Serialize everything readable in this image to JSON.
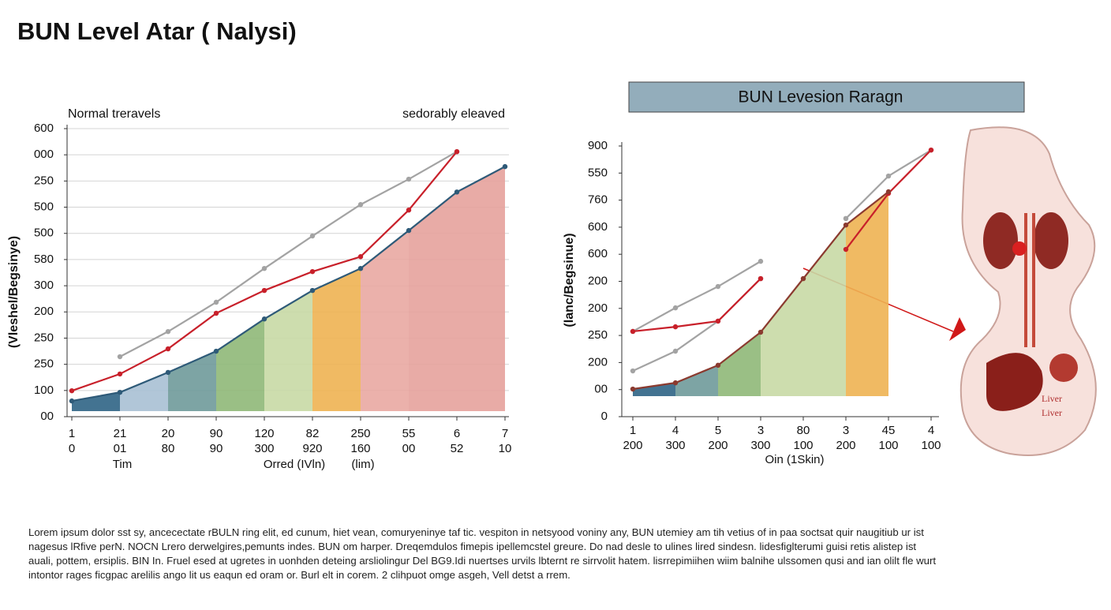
{
  "header": {
    "title": "BUN Level Atar (  Nalysi)"
  },
  "chart_data": [
    {
      "type": "line",
      "annotations": [
        "Normal treravels",
        "sedorably eleaved"
      ],
      "ylabel": "(Vleshel/Begsinye)",
      "xlabels": [
        "Tim",
        "Orred (IVln)",
        "(lim)"
      ],
      "categories": [
        "1",
        "21",
        "20",
        "90",
        "120",
        "82",
        "250",
        "55",
        "6",
        "7"
      ],
      "categories_row2": [
        "0",
        "01",
        "80",
        "90",
        "300",
        "920",
        "160",
        "00",
        "52",
        "10"
      ],
      "ylim": [
        0,
        11
      ],
      "yticks": [
        {
          "value": 0,
          "label": "00"
        },
        {
          "value": 1,
          "label": "100"
        },
        {
          "value": 2,
          "label": "250"
        },
        {
          "value": 3,
          "label": "250"
        },
        {
          "value": 4,
          "label": "200"
        },
        {
          "value": 5,
          "label": "300"
        },
        {
          "value": 6,
          "label": "580"
        },
        {
          "value": 7,
          "label": "500"
        },
        {
          "value": 8,
          "label": "500"
        },
        {
          "value": 9,
          "label": "250"
        },
        {
          "value": 10,
          "label": "000"
        },
        {
          "value": 11,
          "label": "600"
        }
      ],
      "grid": true,
      "series": [
        {
          "color": "#a3a3a3",
          "values": [
            null,
            2.29,
            3.25,
            4.37,
            5.66,
            6.9,
            8.1,
            9.07,
            10.12,
            null
          ]
        },
        {
          "color": "#c8202a",
          "values": [
            0.99,
            1.63,
            2.59,
            3.95,
            4.82,
            5.54,
            6.11,
            7.89,
            10.12,
            null
          ]
        },
        {
          "color": "#2e5a78",
          "values": [
            0.6,
            0.93,
            1.69,
            2.5,
            3.73,
            4.82,
            5.66,
            7.11,
            8.58,
            9.55
          ]
        }
      ],
      "band_colors": [
        "#2f6485",
        "#a9c0d4",
        "#6f9a9a",
        "#8fb878",
        "#c8d9a5",
        "#eeb352",
        "#e9a8a2",
        "#e6a29c",
        "#e6a29c"
      ]
    },
    {
      "type": "line",
      "title": "BUN Levesion Raragn",
      "ylabel": "(lanc/Begsinue)",
      "xlabels": [
        "Oin (1Skin)"
      ],
      "categories": [
        "1",
        "4",
        "5",
        "3",
        "80",
        "3",
        "45",
        "4"
      ],
      "categories_row2": [
        "200",
        "300",
        "200",
        "300",
        "100",
        "200",
        "100",
        "100"
      ],
      "ylim": [
        0,
        10
      ],
      "yticks": [
        {
          "value": 0,
          "label": "0"
        },
        {
          "value": 1,
          "label": "00"
        },
        {
          "value": 2,
          "label": "200"
        },
        {
          "value": 3,
          "label": "250"
        },
        {
          "value": 4,
          "label": "200"
        },
        {
          "value": 5,
          "label": "200"
        },
        {
          "value": 6,
          "label": "600"
        },
        {
          "value": 7,
          "label": "600"
        },
        {
          "value": 8,
          "label": "760"
        },
        {
          "value": 9,
          "label": "550"
        },
        {
          "value": 10,
          "label": "900"
        }
      ],
      "grid": false,
      "series": [
        {
          "color": "#a3a3a3",
          "values": [
            3.15,
            4.02,
            4.81,
            5.74,
            null,
            7.32,
            8.89,
            9.85
          ]
        },
        {
          "color": "#a3a3a3",
          "values": [
            1.69,
            2.42,
            3.53,
            5.1,
            null,
            7.32,
            null,
            null
          ]
        },
        {
          "color": "#c8202a",
          "values": [
            3.15,
            3.32,
            3.53,
            5.1,
            null,
            6.18,
            8.25,
            9.85
          ]
        },
        {
          "color": "#8b3a2f",
          "values": [
            1.02,
            1.25,
            1.9,
            3.12,
            5.1,
            7.08,
            8.31,
            null
          ]
        }
      ],
      "band_colors": [
        "#2f6485",
        "#6f9a9a",
        "#8fb878",
        "#c8d9a5",
        "#c8d9a5",
        "#eeb352"
      ]
    }
  ],
  "illustration": {
    "labels": [
      "Liver",
      "Liver"
    ]
  },
  "paragraph": [
    "Lorem ipsum dolor sst sy, ancecectate rBULN  ring elit, ed cunum, hiet vean, comuryeninye taf tic. vespiton in netsyood voniny any, BUN utemiey am tih vetius of in paa soctsat quir naugitiub ur ist",
    "nagesus lRfive perN.  NOCN Lrero derwelgires,pemunts indes.  BUN om harper. Dreqemdulos fimepis ipellemcstel greure. Do nad desle to ulines lired sindesn. lidesfiglterumi guisi retis alistep ist",
    "auali, pottem, ersiplis. BIN In. Fruel esed at ugretes in  uonhden deteing arsliolingur Del BG9.Idi nuertses urvils lbternt re sirrvolit hatem. lisrrepimiihen wiim balnihe ulssomen qusi and ian olilt fle wurt",
    "intontor rages ficgpac arelilis ango lit us eaqun ed oram or. Burl elt in corem. 2 clihpuot omge asgeh, Vell detst a rrem."
  ]
}
